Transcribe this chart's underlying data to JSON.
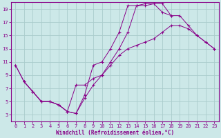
{
  "xlabel": "Windchill (Refroidissement éolien,°C)",
  "bg_color": "#cce8e8",
  "line_color": "#880088",
  "grid_color": "#aacccc",
  "xlim": [
    -0.5,
    23.5
  ],
  "ylim": [
    2,
    20
  ],
  "xticks": [
    0,
    1,
    2,
    3,
    4,
    5,
    6,
    7,
    8,
    9,
    10,
    11,
    12,
    13,
    14,
    15,
    16,
    17,
    18,
    19,
    20,
    21,
    22,
    23
  ],
  "yticks": [
    3,
    5,
    7,
    9,
    11,
    13,
    15,
    17,
    19
  ],
  "line1_x": [
    0,
    1,
    2,
    3,
    4,
    5,
    6,
    7,
    8,
    9,
    10,
    11,
    12,
    13,
    14,
    15,
    16,
    17,
    18
  ],
  "line1_y": [
    10.5,
    8.0,
    6.5,
    5.0,
    5.0,
    4.5,
    3.5,
    3.2,
    6.0,
    10.5,
    11.0,
    13.0,
    15.5,
    19.5,
    19.5,
    19.8,
    19.8,
    18.5,
    18.0
  ],
  "line2_x": [
    0,
    1,
    2,
    3,
    4,
    5,
    6,
    7,
    8,
    9,
    10,
    11,
    12,
    13,
    14,
    15,
    16,
    17,
    18,
    19,
    20,
    21,
    22,
    23
  ],
  "line2_y": [
    10.5,
    8.0,
    6.5,
    5.0,
    5.0,
    4.5,
    3.5,
    7.5,
    7.5,
    8.5,
    9.0,
    10.5,
    12.0,
    13.0,
    13.5,
    14.0,
    14.5,
    15.5,
    16.5,
    16.5,
    16.0,
    15.0,
    14.0,
    13.0
  ],
  "line3_x": [
    1,
    2,
    3,
    4,
    5,
    6,
    7,
    8,
    9,
    10,
    11,
    12,
    13,
    14,
    15,
    16,
    17,
    18,
    19,
    20,
    21,
    22,
    23
  ],
  "line3_y": [
    8.0,
    6.5,
    5.0,
    5.0,
    4.5,
    3.5,
    3.2,
    5.5,
    7.5,
    9.0,
    11.0,
    13.0,
    15.5,
    19.5,
    19.5,
    19.8,
    19.8,
    18.0,
    18.0,
    16.5,
    15.0,
    14.0,
    13.0
  ]
}
